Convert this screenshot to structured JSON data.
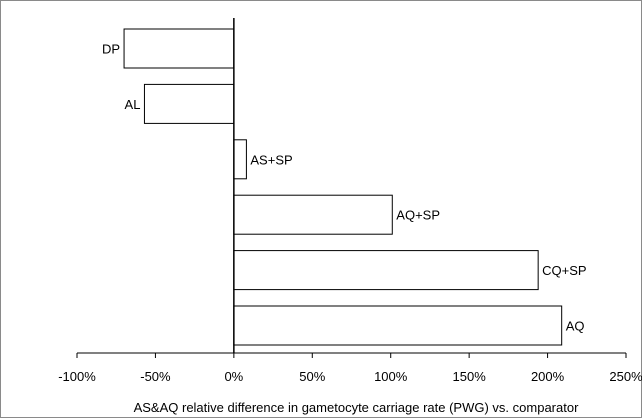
{
  "chart_data": {
    "type": "bar",
    "orientation": "horizontal",
    "categories": [
      "DP",
      "AL",
      "AS+SP",
      "AQ+SP",
      "CQ+SP",
      "AQ"
    ],
    "values": [
      -70,
      -57,
      8,
      101,
      194,
      209
    ],
    "xlabel": "AS&AQ relative difference in gametocyte carriage rate (PWG) vs. comparator",
    "ylabel": "",
    "xlim": [
      -100,
      250
    ],
    "xticks": [
      -100,
      -50,
      0,
      50,
      100,
      150,
      200,
      250
    ],
    "xtick_labels": [
      "-100%",
      "-50%",
      "0%",
      "50%",
      "100%",
      "150%",
      "200%",
      "250%"
    ],
    "grid": false,
    "legend": "none",
    "bar_fill": "#ffffff",
    "bar_stroke": "#000000"
  }
}
